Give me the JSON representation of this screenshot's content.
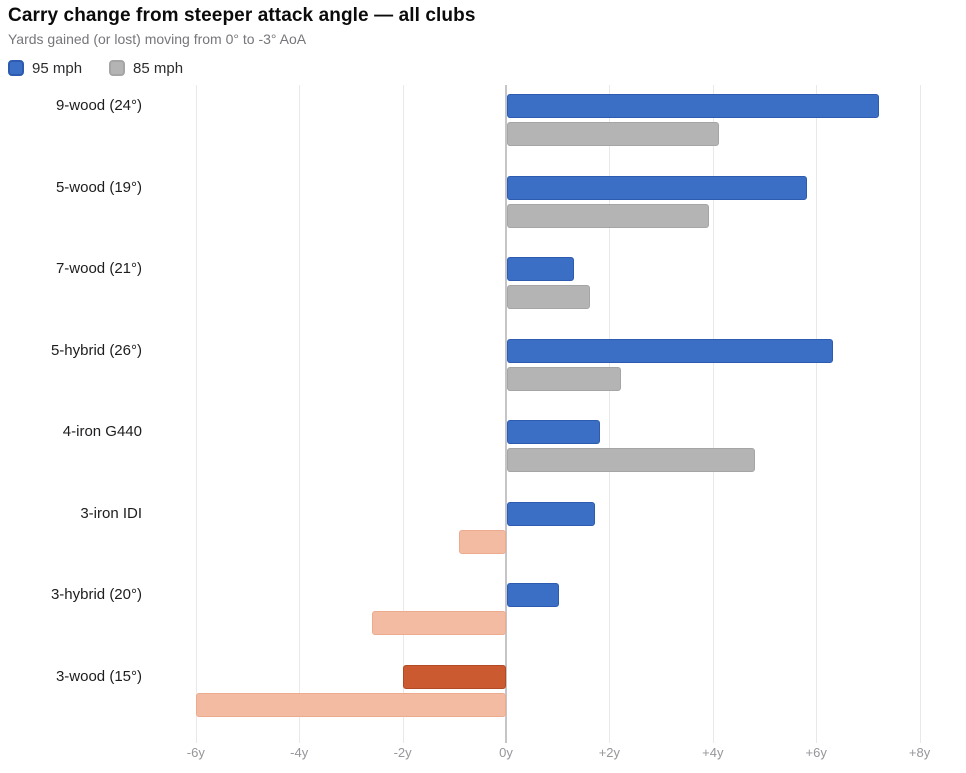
{
  "header": {
    "title": "Carry change from steeper attack angle — all clubs",
    "subtitle": "Yards gained (or lost) moving from 0° to -3° AoA"
  },
  "legend": [
    {
      "label": "95 mph",
      "color": "#3b6ec5",
      "border": "#2d5bb0"
    },
    {
      "label": "85 mph",
      "color": "#b4b4b4",
      "border": "#a5a5a5"
    }
  ],
  "chart_data": {
    "type": "bar",
    "orientation": "horizontal",
    "title": "Carry change from steeper attack angle — all clubs",
    "subtitle": "Yards gained (or lost) moving from 0° to -3° AoA",
    "categories": [
      "9-wood (24°)",
      "5-wood (19°)",
      "7-wood (21°)",
      "5-hybrid (26°)",
      "4-iron G440",
      "3-iron IDI",
      "3-hybrid (20°)",
      "3-wood (15°)"
    ],
    "series": [
      {
        "name": "95 mph",
        "values": [
          7.2,
          5.8,
          1.3,
          6.3,
          1.8,
          1.7,
          1.0,
          -2.0
        ]
      },
      {
        "name": "85 mph",
        "values": [
          4.1,
          3.9,
          1.6,
          2.2,
          4.8,
          -0.9,
          -2.6,
          -6.0
        ]
      }
    ],
    "unit": "y",
    "x_ticks": [
      "-6y",
      "-4y",
      "-2y",
      "0y",
      "+2y",
      "+4y",
      "+6y",
      "+8y"
    ],
    "x_tick_values": [
      -6,
      -4,
      -2,
      0,
      2,
      4,
      6,
      8
    ],
    "xlim": [
      -6.2,
      8.9
    ],
    "grid": true,
    "legend_position": "top-left",
    "colors": {
      "positive_95": "#3b6ec5",
      "positive_95_border": "#2d5bb0",
      "positive_85": "#b4b4b4",
      "positive_85_border": "#a5a5a5",
      "negative_95": "#cb5a30",
      "negative_95_border": "#b04b26",
      "negative_85": "#f2bba2",
      "negative_85_border": "#ecab8e"
    }
  }
}
